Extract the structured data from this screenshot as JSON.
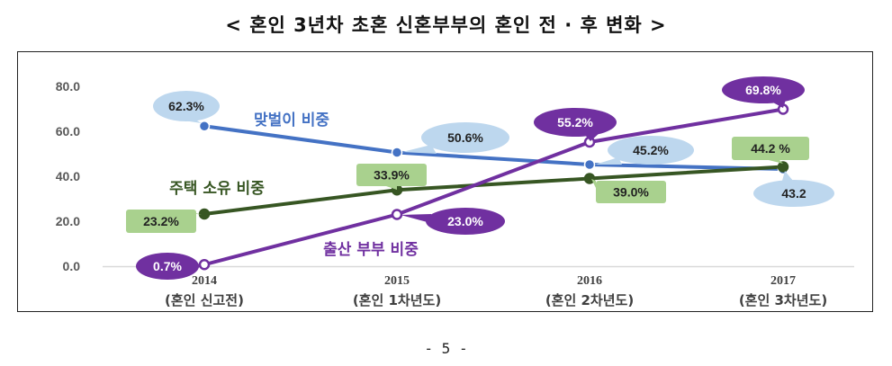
{
  "title": "< 혼인 3년차 초혼 신혼부부의 혼인 전 · 후 변화 >",
  "page_number": "- 5 -",
  "chart_data": {
    "type": "line",
    "categories": [
      "2014",
      "2015",
      "2016",
      "2017"
    ],
    "category_sublabels": [
      "(혼인 신고전)",
      "(혼인 1차년도)",
      "(혼인 2차년도)",
      "(혼인 3차년도)"
    ],
    "yticks": [
      "0.0",
      "20.0",
      "40.0",
      "60.0",
      "80.0"
    ],
    "ylim": [
      0,
      80
    ],
    "series": [
      {
        "name": "맞벌이 비중",
        "color": "#4472c4",
        "values": [
          62.3,
          50.6,
          45.2,
          43.2
        ],
        "labels": [
          "62.3%",
          "50.6%",
          "45.2%",
          "43.2"
        ],
        "label_fill": "#bdd7ee"
      },
      {
        "name": "주택 소유 비중",
        "color": "#375623",
        "values": [
          23.2,
          33.9,
          39.0,
          44.2
        ],
        "labels": [
          "23.2%",
          "33.9%",
          "39.0%",
          "44.2 %"
        ],
        "label_fill": "#a9d18e"
      },
      {
        "name": "출산 부부 비중",
        "color": "#7030a0",
        "values": [
          0.7,
          23.0,
          55.2,
          69.8
        ],
        "labels": [
          "0.7%",
          "23.0%",
          "55.2%",
          "69.8%"
        ],
        "label_fill": "#7030a0"
      }
    ]
  }
}
